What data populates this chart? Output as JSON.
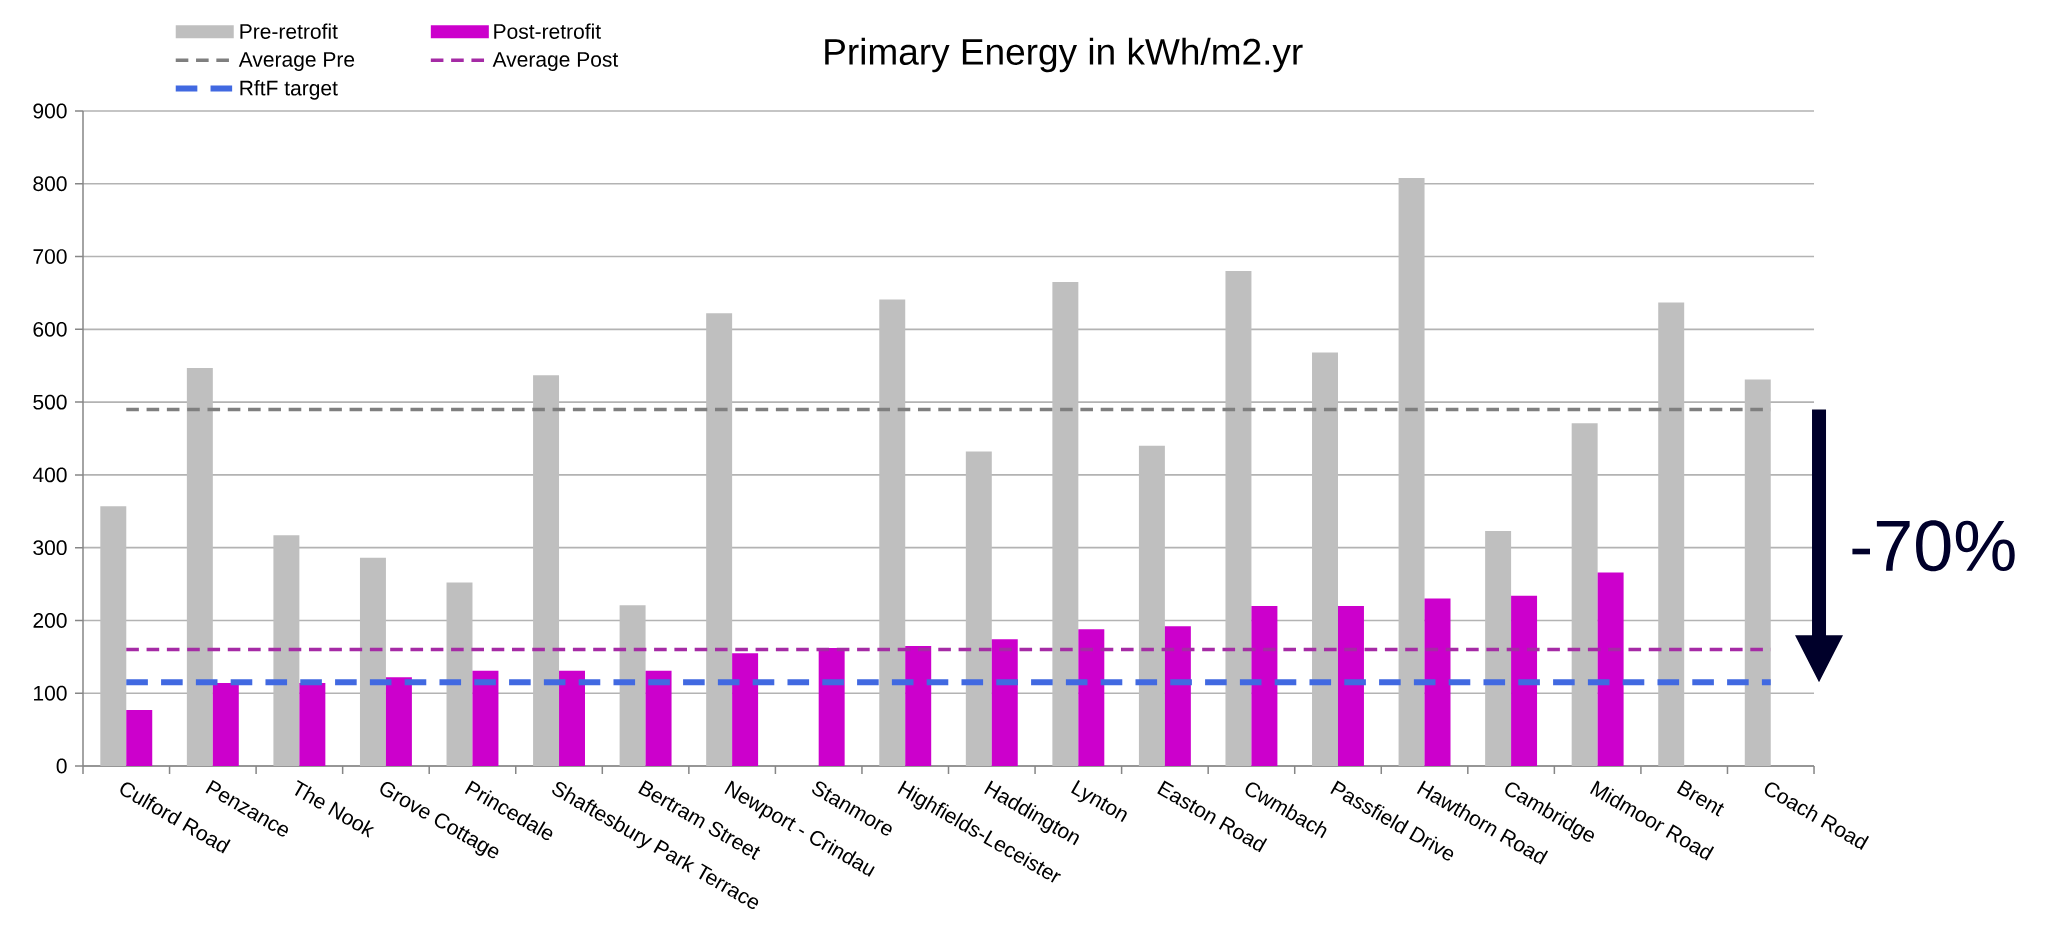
{
  "chart_data": {
    "type": "bar",
    "title": "Primary Energy in kWh/m2.yr",
    "categories": [
      "Culford Road",
      "Penzance",
      "The Nook",
      "Grove Cottage",
      "Princedale",
      "Shaftesbury Park Terrace",
      "Bertram Street",
      "Newport - Crindau",
      "Stanmore",
      "Highfields-Leceister",
      "Haddington",
      "Lynton",
      "Easton Road",
      "Cwmbach",
      "Passfield Drive",
      "Hawthorn Road",
      "Cambridge",
      "Midmoor Road",
      "Brent",
      "Coach Road"
    ],
    "series": [
      {
        "name": "Pre-retrofit",
        "color": "#bfbfbf",
        "values": [
          357,
          547,
          317,
          286,
          252,
          537,
          221,
          622,
          null,
          641,
          432,
          665,
          440,
          680,
          568,
          808,
          323,
          471,
          637,
          531
        ]
      },
      {
        "name": "Post-retrofit",
        "color": "#cc00cc",
        "values": [
          77,
          114,
          114,
          122,
          131,
          131,
          131,
          155,
          162,
          165,
          174,
          188,
          192,
          220,
          220,
          230,
          234,
          266,
          null,
          null
        ]
      }
    ],
    "ylim": [
      0,
      900
    ],
    "yticks": [
      0,
      100,
      200,
      300,
      400,
      500,
      600,
      700,
      800,
      900
    ],
    "grid": "y",
    "legend": "top left",
    "ref_lines": [
      {
        "axis": "y",
        "value": 490,
        "label": "Average Pre",
        "color": "#7f7f7f",
        "line_style": "dashed"
      },
      {
        "axis": "y",
        "value": 160,
        "label": "Average Post",
        "color": "#a52ba5",
        "line_style": "dashed"
      },
      {
        "axis": "y",
        "value": 115,
        "label": "RftF target",
        "color": "#4169e1",
        "line_style": "dashed"
      }
    ],
    "annotations": [
      "-70%"
    ]
  }
}
